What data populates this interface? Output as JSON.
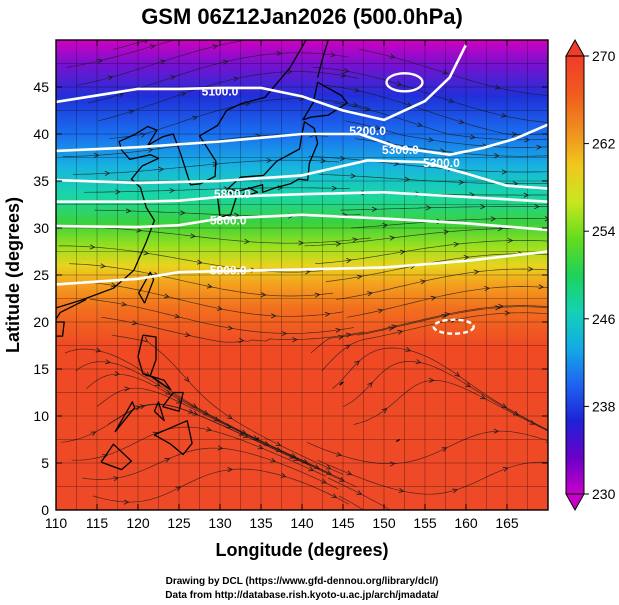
{
  "title": "GSM 06Z12Jan2026 (500.0hPa)",
  "xlabel": "Longitude (degrees)",
  "ylabel": "Latitude  (degrees)",
  "credits": [
    "Drawing by DCL (https://www.gfd-dennou.org/library/dcl/)",
    "Data from http://database.rish.kyoto-u.ac.jp/arch/jmadata/"
  ],
  "map": {
    "lon_range": [
      110,
      170
    ],
    "lat_range": [
      0,
      50
    ],
    "lon_ticks": [
      110,
      115,
      120,
      125,
      130,
      135,
      140,
      145,
      150,
      155,
      160,
      165
    ],
    "lat_ticks": [
      0,
      5,
      10,
      15,
      20,
      25,
      30,
      35,
      40,
      45
    ],
    "grid": true
  },
  "colorbar": {
    "min": 230,
    "max": 270,
    "ticks": [
      230,
      238,
      246,
      254,
      262,
      270
    ],
    "colors": [
      "#c800c8",
      "#6a00c8",
      "#1e22d8",
      "#1e64f0",
      "#14aae6",
      "#14d2b4",
      "#1ed25a",
      "#64dc1e",
      "#c8e61e",
      "#f0c81e",
      "#f08c1e",
      "#f05a1e",
      "#f03c28"
    ]
  },
  "contours": [
    {
      "label": "5100.0",
      "lat_by_lon": [
        [
          110,
          43.4
        ],
        [
          120,
          44.8
        ],
        [
          125,
          44.8
        ],
        [
          130,
          44.9
        ],
        [
          135,
          44.9
        ],
        [
          140,
          44.0
        ],
        [
          145,
          42.5
        ],
        [
          150,
          41.5
        ],
        [
          155,
          43.5
        ],
        [
          158,
          46
        ],
        [
          160,
          49.5
        ]
      ]
    },
    {
      "label": "5200.0",
      "lat_by_lon": [
        [
          110,
          38.2
        ],
        [
          120,
          38.6
        ],
        [
          130,
          39.2
        ],
        [
          140,
          40.0
        ],
        [
          147,
          40.0
        ],
        [
          152,
          38.5
        ],
        [
          158,
          37.8
        ],
        [
          162,
          38.5
        ],
        [
          166,
          39.5
        ],
        [
          170,
          41.0
        ]
      ]
    },
    {
      "label": "5300.0",
      "lat_by_lon": [
        [
          110,
          35.1
        ],
        [
          120,
          34.8
        ],
        [
          130,
          35.0
        ],
        [
          140,
          35.6
        ],
        [
          148,
          37.2
        ],
        [
          155,
          37.0
        ],
        [
          160,
          35.8
        ],
        [
          165,
          34.5
        ],
        [
          170,
          34.2
        ]
      ]
    },
    {
      "label": "5800.0",
      "lat_by_lon": [
        [
          110,
          32.8
        ],
        [
          120,
          32.8
        ],
        [
          125,
          32.9
        ],
        [
          130,
          33.3
        ],
        [
          140,
          33.6
        ],
        [
          150,
          33.8
        ],
        [
          160,
          33.3
        ],
        [
          170,
          32.8
        ]
      ]
    },
    {
      "label": "5800.0",
      "lat_by_lon": [
        [
          110,
          30.2
        ],
        [
          120,
          30.1
        ],
        [
          125,
          30.3
        ],
        [
          130,
          31.0
        ],
        [
          140,
          31.4
        ],
        [
          150,
          31.0
        ],
        [
          160,
          30.5
        ],
        [
          170,
          29.8
        ]
      ]
    },
    {
      "label": "5900.0",
      "lat_by_lon": [
        [
          110,
          24.0
        ],
        [
          120,
          24.6
        ],
        [
          125,
          25.3
        ],
        [
          130,
          25.4
        ],
        [
          140,
          25.6
        ],
        [
          150,
          25.8
        ],
        [
          160,
          26.5
        ],
        [
          170,
          27.5
        ]
      ]
    }
  ],
  "contour_labels": [
    {
      "text": "5100.0",
      "lon": 130,
      "lat": 44.5
    },
    {
      "text": "5200.0",
      "lon": 148,
      "lat": 40.3
    },
    {
      "text": "5300.0",
      "lon": 152,
      "lat": 38.3
    },
    {
      "text": "5300.0",
      "lon": 157,
      "lat": 36.9
    },
    {
      "text": "5800.0",
      "lon": 131.5,
      "lat": 33.6
    },
    {
      "text": "5800.0",
      "lon": 131,
      "lat": 30.8
    },
    {
      "text": "5900.0",
      "lon": 131,
      "lat": 25.5
    }
  ]
}
